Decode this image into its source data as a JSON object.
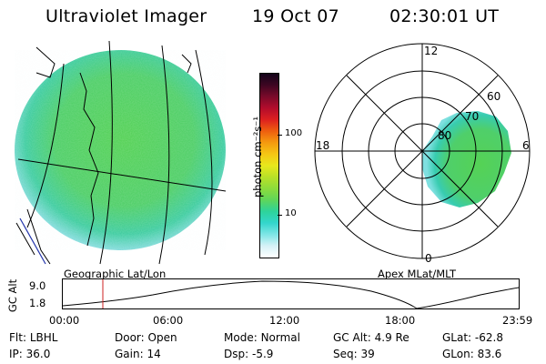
{
  "header": {
    "instrument": "Ultraviolet Imager",
    "date": "19 Oct 07",
    "time": "02:30:01 UT"
  },
  "left_panel": {
    "caption": "Geographic Lat/Lon"
  },
  "right_panel": {
    "caption": "Apex MLat/MLT",
    "mlt_labels": {
      "top": "12",
      "bottom": "0",
      "left": "18",
      "right": "6"
    },
    "lat_labels": [
      "60",
      "70",
      "80"
    ]
  },
  "colorbar": {
    "label": "photon cm⁻²s⁻¹",
    "ticks": [
      "100",
      "10"
    ],
    "colors": [
      "#ffffff",
      "#d6f2f7",
      "#7fe6e6",
      "#33d6cc",
      "#2dd39b",
      "#5fd65a",
      "#8cdc3c",
      "#b8e028",
      "#e8e81c",
      "#f5c614",
      "#f59a0f",
      "#ee5e0f",
      "#dd2020",
      "#b30c2c",
      "#7a0a2a",
      "#3e0622",
      "#14041a"
    ]
  },
  "altitude_plot": {
    "axis_label": "GC Alt",
    "y_ticks": [
      "9.0",
      "1.8"
    ],
    "x_ticks": [
      "00:00",
      "06:00",
      "12:00",
      "18:00",
      "23:59"
    ]
  },
  "status": {
    "row1": [
      {
        "key": "Flt:",
        "value": "LBHL"
      },
      {
        "key": "Door:",
        "value": "Open"
      },
      {
        "key": "Mode:",
        "value": "Normal"
      },
      {
        "key": "GC Alt:",
        "value": "4.9 Re"
      },
      {
        "key": "GLat:",
        "value": "-62.8"
      }
    ],
    "row2": [
      {
        "key": "IP:",
        "value": "36.0"
      },
      {
        "key": "Gain:",
        "value": "14"
      },
      {
        "key": "Dsp:",
        "value": "-5.9"
      },
      {
        "key": "Seq:",
        "value": "39"
      },
      {
        "key": "GLon:",
        "value": "83.6"
      }
    ]
  }
}
